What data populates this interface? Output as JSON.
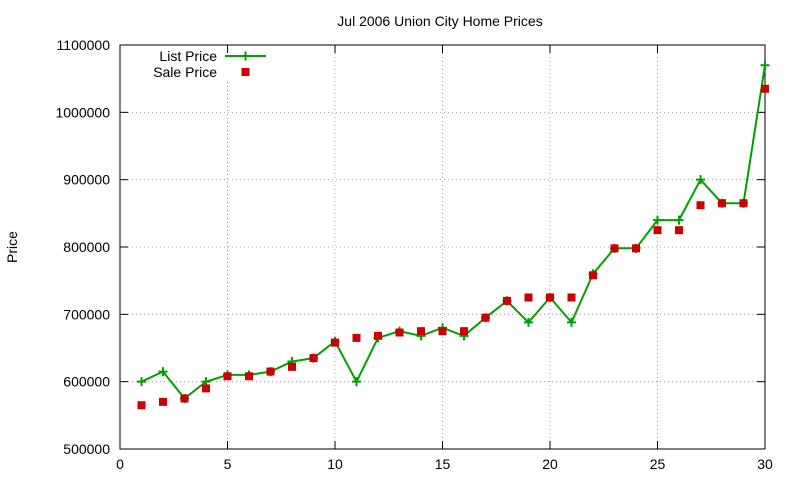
{
  "chart_data": {
    "type": "line",
    "title": "Jul 2006 Union City Home Prices",
    "xlabel": "",
    "ylabel": "Price",
    "xlim": [
      0,
      30
    ],
    "ylim": [
      500000,
      1100000
    ],
    "xticks": [
      0,
      5,
      10,
      15,
      20,
      25,
      30
    ],
    "yticks": [
      500000,
      600000,
      700000,
      800000,
      900000,
      1000000,
      1100000
    ],
    "grid": true,
    "legend_position": "top-left",
    "series": [
      {
        "name": "List Price",
        "style": "linespoints",
        "marker": "plus",
        "color": "#00a000",
        "x": [
          1,
          2,
          3,
          4,
          5,
          6,
          7,
          8,
          9,
          10,
          11,
          12,
          13,
          14,
          15,
          16,
          17,
          18,
          19,
          20,
          21,
          22,
          23,
          24,
          25,
          26,
          27,
          28,
          29,
          30
        ],
        "y": [
          600000,
          615000,
          575000,
          600000,
          610000,
          610000,
          615000,
          630000,
          635000,
          660000,
          600000,
          665000,
          675000,
          668000,
          680000,
          668000,
          695000,
          720000,
          688000,
          725000,
          688000,
          760000,
          798000,
          798000,
          840000,
          840000,
          900000,
          865000,
          865000,
          1070000
        ]
      },
      {
        "name": "Sale Price",
        "style": "points",
        "marker": "square",
        "color": "#cc0000",
        "x": [
          1,
          2,
          3,
          4,
          5,
          6,
          7,
          8,
          9,
          10,
          11,
          12,
          13,
          14,
          15,
          16,
          17,
          18,
          19,
          20,
          21,
          22,
          23,
          24,
          25,
          26,
          27,
          28,
          29,
          30
        ],
        "y": [
          565000,
          570000,
          575000,
          590000,
          608000,
          608000,
          615000,
          622000,
          635000,
          658000,
          665000,
          668000,
          673000,
          675000,
          675000,
          675000,
          695000,
          720000,
          725000,
          725000,
          725000,
          758000,
          798000,
          798000,
          825000,
          825000,
          862000,
          865000,
          865000,
          1035000
        ]
      }
    ]
  }
}
